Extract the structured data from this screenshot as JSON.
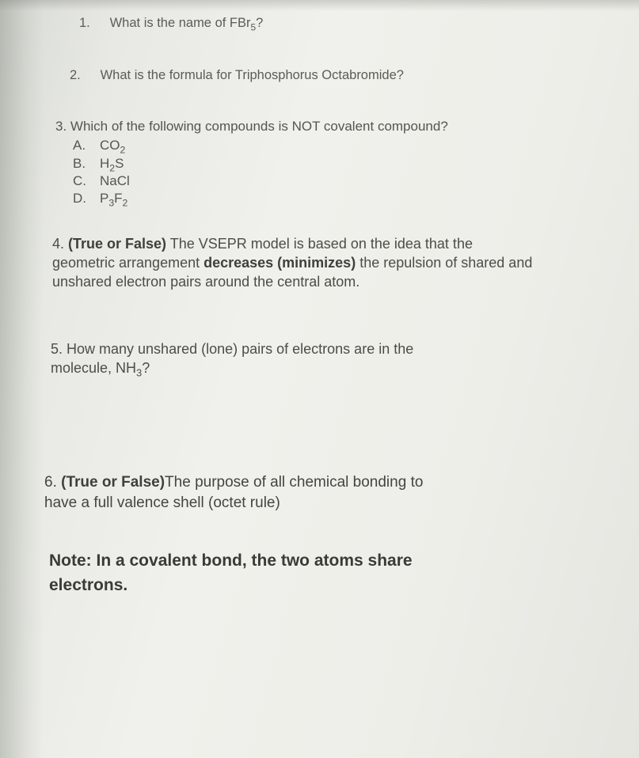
{
  "q1": {
    "num": "1.",
    "text_before": "What is the name of FBr",
    "sub": "5",
    "text_after": "?"
  },
  "q2": {
    "num": "2.",
    "text": "What is the formula for Triphosphorus Octabromide?"
  },
  "q3": {
    "num_text": "3. Which of the following compounds is NOT covalent compound?",
    "optA_letter": "A.",
    "optA_f": "CO",
    "optA_sub": "2",
    "optB_letter": "B.",
    "optB_f1": "H",
    "optB_sub": "2",
    "optB_f2": "S",
    "optC_letter": "C.",
    "optC_f": "NaCl",
    "optD_letter": "D.",
    "optD_f1": "P",
    "optD_sub1": "3",
    "optD_f2": "F",
    "optD_sub2": "2"
  },
  "q4": {
    "num": "4. ",
    "tf": "(True or False)",
    "line1_rest": " The VSEPR model is based on the idea that the",
    "line2a": "geometric arrangement ",
    "line2b": "decreases (minimizes)",
    "line2c": " the repulsion of shared and",
    "line3": "unshared electron pairs around the central atom."
  },
  "q5": {
    "line1": "5. How many unshared (lone) pairs of electrons are in the",
    "line2a": "molecule, NH",
    "line2_sub": "3",
    "line2b": "?"
  },
  "q6": {
    "num": "6. ",
    "tf": "(True or False)",
    "line1_rest": "The purpose of all chemical bonding to",
    "line2": "have a full valence shell (octet rule)"
  },
  "note": {
    "line1": "Note: In a covalent bond, the two atoms share",
    "line2": "electrons."
  }
}
